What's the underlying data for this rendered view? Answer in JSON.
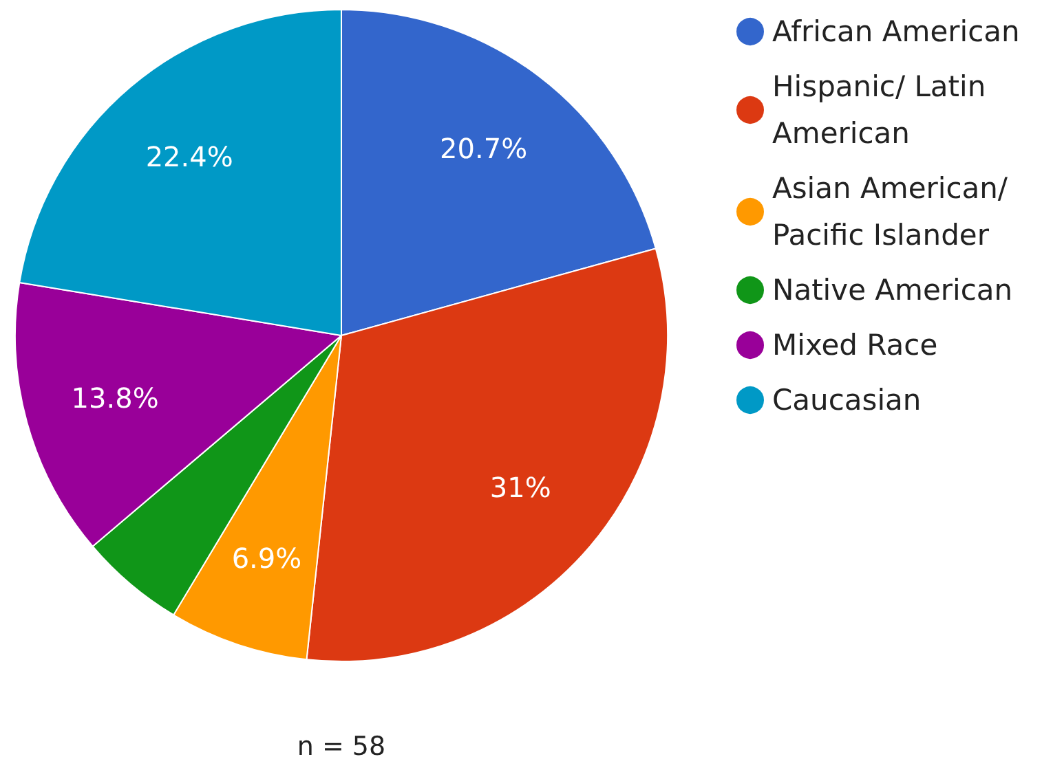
{
  "chart_data": {
    "type": "pie",
    "categories": [
      "African American",
      "Hispanic/ Latin American",
      "Asian American/ Pacific Islander",
      "Native American",
      "Mixed Race",
      "Caucasian"
    ],
    "values": [
      20.7,
      31,
      6.9,
      5.2,
      13.8,
      22.4
    ],
    "value_labels": [
      "20.7%",
      "31%",
      "6.9%",
      null,
      "13.8%",
      "22.4%"
    ],
    "colors": [
      "#3366cc",
      "#dc3912",
      "#ff9900",
      "#109618",
      "#990099",
      "#0099c6"
    ],
    "legend": "top right",
    "annotations": [
      "n = 58"
    ]
  }
}
